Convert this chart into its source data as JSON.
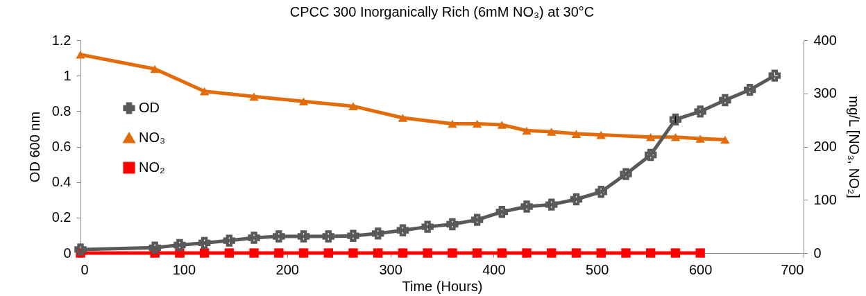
{
  "chart_data": {
    "type": "line",
    "title": "CPCC 300 Inorganically Rich (6mM NO₃)  at 30°C",
    "xlabel": "Time (Hours)",
    "ylabel": "OD 600 nm",
    "y2label": "mg/L [NO₃, NO₂]",
    "xlim": [
      0,
      700
    ],
    "xticks": [
      0,
      100,
      200,
      300,
      400,
      500,
      600,
      700
    ],
    "ylim": [
      0,
      1.2
    ],
    "yticks": [
      0,
      0.2,
      0.4,
      0.6,
      0.8,
      1,
      1.2
    ],
    "y2lim": [
      0,
      400
    ],
    "y2ticks": [
      0,
      100,
      200,
      300,
      400
    ],
    "grid": false,
    "legend": "left",
    "line_style": "solid",
    "series": [
      {
        "name": "OD",
        "color": "#595959",
        "marker": "cross",
        "x": [
          0,
          72,
          96,
          120,
          144,
          168,
          192,
          216,
          240,
          264,
          288,
          312,
          336,
          360,
          384,
          408,
          432,
          456,
          480,
          504,
          528,
          552,
          576,
          600,
          624,
          648,
          672
        ],
        "values": [
          0.02,
          0.03,
          0.045,
          0.057,
          0.07,
          0.086,
          0.094,
          0.094,
          0.094,
          0.097,
          0.11,
          0.128,
          0.148,
          0.162,
          0.187,
          0.232,
          0.262,
          0.273,
          0.303,
          0.345,
          0.445,
          0.553,
          0.753,
          0.798,
          0.862,
          0.92,
          1.0
        ],
        "errors": [
          null,
          null,
          null,
          null,
          null,
          null,
          null,
          null,
          null,
          null,
          null,
          null,
          null,
          null,
          null,
          null,
          null,
          null,
          null,
          null,
          null,
          null,
          0.02,
          null,
          null,
          null,
          null
        ]
      },
      {
        "name": "NO₃",
        "color": "#e36c0a",
        "marker": "triangle",
        "axis": "y2",
        "x": [
          0,
          72,
          120,
          168,
          216,
          264,
          312,
          360,
          384,
          408,
          432,
          456,
          480,
          504,
          552,
          576,
          600,
          624
        ],
        "values": [
          373,
          346,
          304,
          294,
          285,
          276,
          254,
          243,
          243,
          241,
          230,
          228,
          224,
          222,
          218,
          218,
          215,
          213
        ]
      },
      {
        "name": "NO₂",
        "color": "#ff0000",
        "marker": "square",
        "axis": "y2",
        "x": [
          0,
          72,
          96,
          120,
          144,
          168,
          192,
          216,
          240,
          264,
          288,
          312,
          336,
          360,
          384,
          408,
          432,
          456,
          480,
          504,
          528,
          552,
          576,
          600
        ],
        "values": [
          0,
          0,
          0,
          0,
          0,
          0,
          0,
          0,
          0,
          0,
          0,
          0,
          0,
          0,
          0,
          0,
          0,
          0,
          0,
          0,
          0,
          0,
          0,
          0
        ]
      }
    ]
  }
}
